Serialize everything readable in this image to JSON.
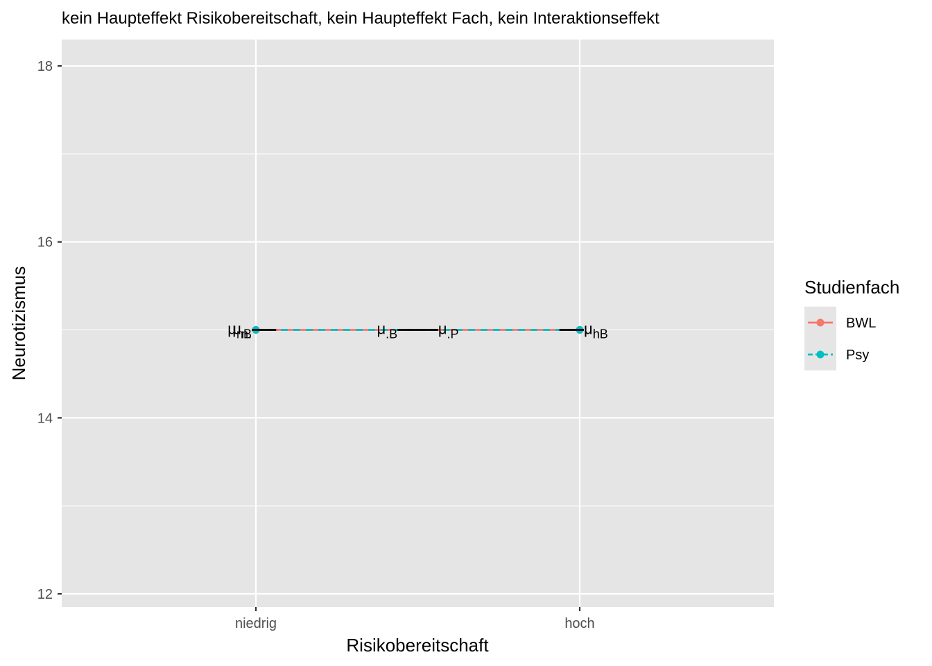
{
  "chart_data": {
    "type": "line",
    "title": "kein Haupteffekt Risikobereitschaft, kein Haupteffekt Fach, kein Interaktionseffekt",
    "xlabel": "Risikobereitschaft",
    "ylabel": "Neurotizismus",
    "categories": [
      "niedrig",
      "hoch"
    ],
    "ylim": [
      11.85,
      18.3
    ],
    "yticks": [
      12,
      14,
      16,
      18
    ],
    "grid": true,
    "legend": {
      "title": "Studienfach",
      "position": "right",
      "entries": [
        "BWL",
        "Psy"
      ]
    },
    "series": [
      {
        "name": "BWL",
        "values": [
          15,
          15
        ],
        "color": "#F8766D",
        "linestyle": "solid"
      },
      {
        "name": "Psy",
        "values": [
          15,
          15
        ],
        "color": "#00BFC4",
        "linestyle": "dashed"
      }
    ],
    "mean_segments": [
      {
        "x_from": 0.0,
        "x_to": 0.05,
        "y": 15
      },
      {
        "x_from": 0.45,
        "x_to": 0.55,
        "y": 15
      },
      {
        "x_from": 0.95,
        "x_to": 1.0,
        "y": 15
      }
    ],
    "annotations": [
      {
        "symbol": "μ",
        "subscript": "n.",
        "x": 0.0,
        "y": 15,
        "side": "left"
      },
      {
        "symbol": "μ",
        "subscript": "nB",
        "x": 0.0,
        "y": 15,
        "side": "left"
      },
      {
        "symbol": "μ",
        "subscript": ".B",
        "x": 0.45,
        "y": 15,
        "side": "left"
      },
      {
        "symbol": "μ",
        "subscript": ".P",
        "x": 0.55,
        "y": 15,
        "side": "right"
      },
      {
        "symbol": "μ",
        "subscript": "hB",
        "x": 1.0,
        "y": 15,
        "side": "right"
      },
      {
        "symbol": "μ",
        "subscript": "h.",
        "x": 1.0,
        "y": 15,
        "side": "right"
      }
    ]
  }
}
